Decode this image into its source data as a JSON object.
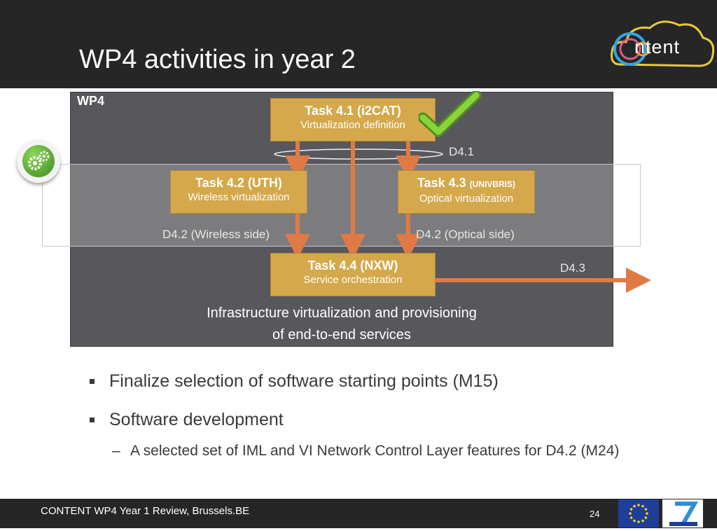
{
  "slide": {
    "title": "WP4 activities in year 2",
    "logo_text": "ntent"
  },
  "diagram": {
    "wp_label": "WP4",
    "tasks": [
      {
        "title": "Task 4.1 (i2CAT)",
        "subtitle": "Virtualization definition"
      },
      {
        "title": "Task 4.2 (UTH)",
        "subtitle": "Wireless virtualization"
      },
      {
        "title": "Task 4.3",
        "title_small": "(UNIVBRIS)",
        "subtitle": "Optical virtualization"
      },
      {
        "title": "Task 4.4 (NXW)",
        "subtitle": "Service orchestration"
      }
    ],
    "deliverables": {
      "d41": "D4.1",
      "d42_wireless": "D4.2 (Wireless side)",
      "d42_optical": "D4.2 (Optical side)",
      "d43": "D4.3"
    },
    "caption_line1": "Infrastructure virtualization and provisioning",
    "caption_line2": "of end-to-end services",
    "colors": {
      "task_fill": "#d4a84b",
      "arrow": "#e07a45",
      "wp_box": "#58585c",
      "check": "#7ecb2e"
    }
  },
  "bullets": [
    "Finalize selection of software starting points (M15)",
    "Software development"
  ],
  "sub_bullets": [
    "A selected set of IML and VI Network Control Layer features for D4.2 (M24)"
  ],
  "footer": {
    "text": "CONTENT WP4 Year 1 Review, Brussels.BE",
    "page": "24"
  },
  "icons": [
    "gear-icon",
    "checkmark-icon",
    "content-logo",
    "eu-flag-icon",
    "fp7-logo"
  ]
}
